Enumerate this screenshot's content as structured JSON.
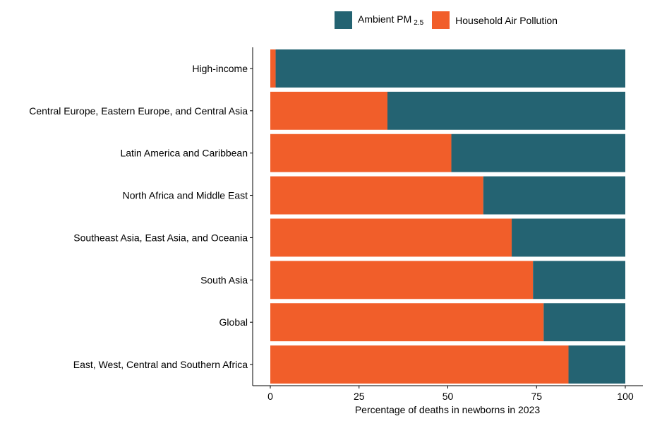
{
  "chart_data": {
    "type": "bar",
    "orientation": "horizontal",
    "stacked": true,
    "xlabel": "Percentage of deaths in newborns in 2023",
    "ylabel": "",
    "xlim": [
      0,
      100
    ],
    "xticks": [
      0,
      25,
      50,
      75,
      100
    ],
    "categories": [
      "High-income",
      "Central Europe, Eastern Europe, and Central Asia",
      "Latin America and Caribbean",
      "North Africa and Middle East",
      "Southeast Asia, East Asia, and Oceania",
      "South Asia",
      "Global",
      "East, West, Central and Southern Africa"
    ],
    "series": [
      {
        "name": "Household Air Pollution",
        "color": "#F15E2A",
        "values": [
          1.5,
          33,
          51,
          60,
          68,
          74,
          77,
          84
        ]
      },
      {
        "name": "Ambient PM 2.5",
        "color": "#246372",
        "values": [
          98.5,
          67,
          49,
          40,
          32,
          26,
          23,
          16
        ]
      }
    ],
    "legend": {
      "position": "top",
      "items": [
        {
          "label": "Ambient PM",
          "subscript": "2.5",
          "color": "#246372"
        },
        {
          "label": "Household Air Pollution",
          "color": "#F15E2A"
        }
      ]
    }
  }
}
